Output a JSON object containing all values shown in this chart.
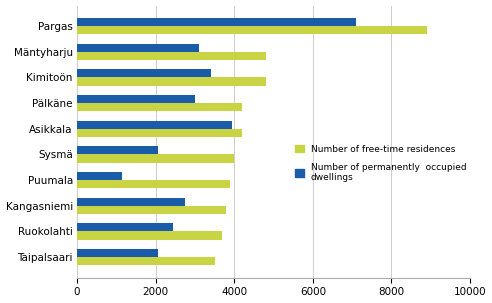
{
  "categories": [
    "Pargas",
    "Mäntyharju",
    "Kimitoön",
    "Pälkäne",
    "Asikkala",
    "Sysmä",
    "Puumala",
    "Kangasniemi",
    "Ruokolahti",
    "Taipalsaari"
  ],
  "free_time": [
    8900,
    4800,
    4800,
    4200,
    4200,
    4000,
    3900,
    3800,
    3700,
    3500
  ],
  "occupied": [
    7100,
    3100,
    3400,
    3000,
    3950,
    2050,
    1150,
    2750,
    2450,
    2050
  ],
  "color_free": "#c8d444",
  "color_occupied": "#1a5ca8",
  "xlim": [
    0,
    10000
  ],
  "xticks": [
    0,
    2000,
    4000,
    6000,
    8000,
    10000
  ],
  "legend_free": "Number of free-time residences",
  "legend_occupied": "Number of permanently  occupied\ndwellings",
  "bar_height": 0.32,
  "background_color": "#ffffff"
}
